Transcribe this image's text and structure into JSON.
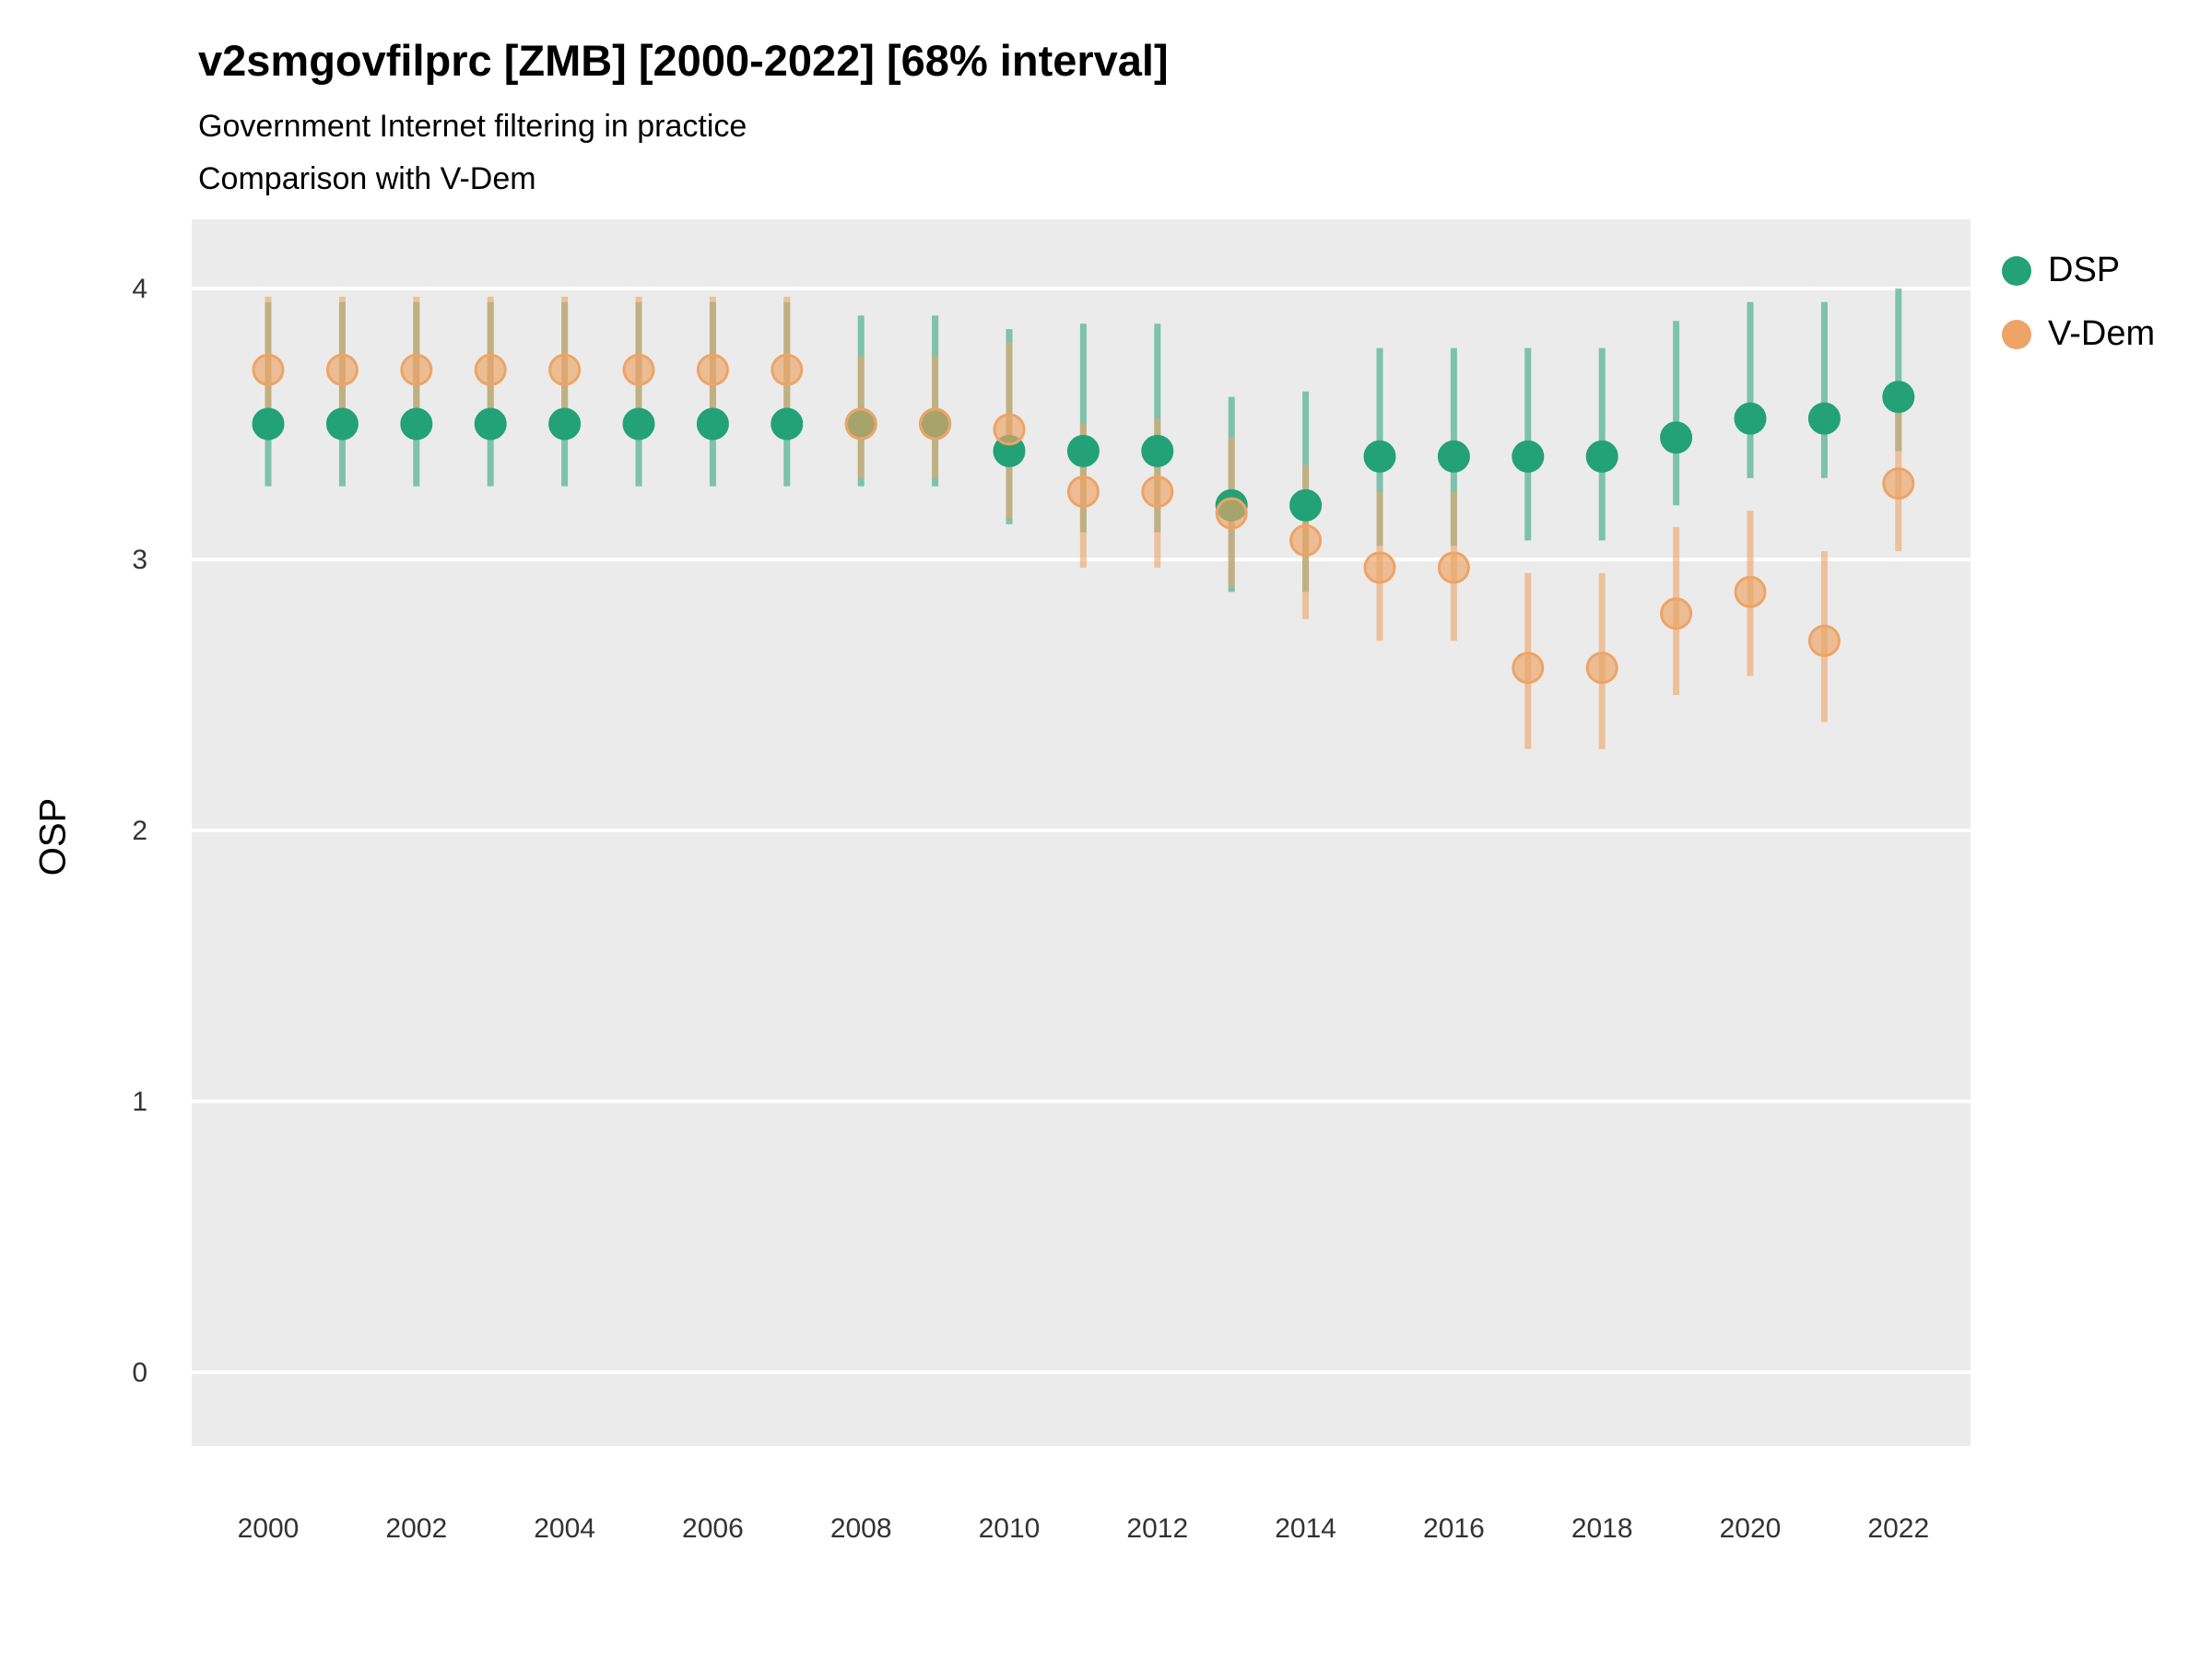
{
  "title": "v2smgovfilprc [ZMB] [2000-2022] [68% interval]",
  "subtitle1": "Government Internet filtering in practice",
  "subtitle2": "Comparison with V-Dem",
  "ylabel": "OSP",
  "legend": {
    "dsp_label": "DSP",
    "vdem_label": "V-Dem"
  },
  "colors": {
    "dsp": "#23a177",
    "vdem": "#eda466",
    "panel": "#ebebeb",
    "grid": "#ffffff",
    "tick_text": "#333333"
  },
  "chart_data": {
    "type": "pointrange",
    "title": "v2smgovfilprc [ZMB] [2000-2022] [68% interval]",
    "xlabel": "",
    "ylabel": "OSP",
    "ylim": [
      -0.27,
      4.25
    ],
    "yticks": [
      0,
      1,
      2,
      3,
      4
    ],
    "xticks": [
      2000,
      2002,
      2004,
      2006,
      2008,
      2010,
      2012,
      2014,
      2016,
      2018,
      2020,
      2022
    ],
    "grid": "major-only",
    "legend_position": "right",
    "x": [
      2000,
      2001,
      2002,
      2003,
      2004,
      2005,
      2006,
      2007,
      2008,
      2009,
      2010,
      2011,
      2012,
      2013,
      2014,
      2015,
      2016,
      2017,
      2018,
      2019,
      2020,
      2021,
      2022
    ],
    "series": [
      {
        "name": "DSP",
        "color": "#23a177",
        "point_fill_opacity": 1,
        "bar_opacity": 0.55,
        "est": [
          3.5,
          3.5,
          3.5,
          3.5,
          3.5,
          3.5,
          3.5,
          3.5,
          3.5,
          3.5,
          3.4,
          3.4,
          3.4,
          3.2,
          3.2,
          3.38,
          3.38,
          3.38,
          3.38,
          3.45,
          3.52,
          3.52,
          3.6
        ],
        "lo": [
          3.27,
          3.27,
          3.27,
          3.27,
          3.27,
          3.27,
          3.27,
          3.27,
          3.27,
          3.27,
          3.13,
          3.1,
          3.1,
          2.88,
          2.88,
          3.05,
          3.05,
          3.07,
          3.07,
          3.2,
          3.3,
          3.3,
          3.4
        ],
        "hi": [
          3.95,
          3.95,
          3.95,
          3.95,
          3.95,
          3.95,
          3.95,
          3.95,
          3.9,
          3.9,
          3.85,
          3.87,
          3.87,
          3.6,
          3.62,
          3.78,
          3.78,
          3.78,
          3.78,
          3.88,
          3.95,
          3.95,
          4.0
        ]
      },
      {
        "name": "V-Dem",
        "color": "#eda466",
        "point_fill_opacity": 0.65,
        "bar_opacity": 0.6,
        "est": [
          3.7,
          3.7,
          3.7,
          3.7,
          3.7,
          3.7,
          3.7,
          3.7,
          3.5,
          3.5,
          3.48,
          3.25,
          3.25,
          3.17,
          3.07,
          2.97,
          2.97,
          2.6,
          2.6,
          2.8,
          2.88,
          2.7,
          3.28
        ],
        "lo": [
          3.45,
          3.45,
          3.45,
          3.45,
          3.45,
          3.45,
          3.45,
          3.45,
          3.3,
          3.3,
          3.15,
          2.97,
          2.97,
          2.9,
          2.78,
          2.7,
          2.7,
          2.3,
          2.3,
          2.5,
          2.57,
          2.4,
          3.03
        ],
        "hi": [
          3.97,
          3.97,
          3.97,
          3.97,
          3.97,
          3.97,
          3.97,
          3.97,
          3.75,
          3.75,
          3.8,
          3.5,
          3.52,
          3.45,
          3.35,
          3.25,
          3.25,
          2.95,
          2.95,
          3.12,
          3.18,
          3.03,
          3.55
        ]
      }
    ]
  }
}
